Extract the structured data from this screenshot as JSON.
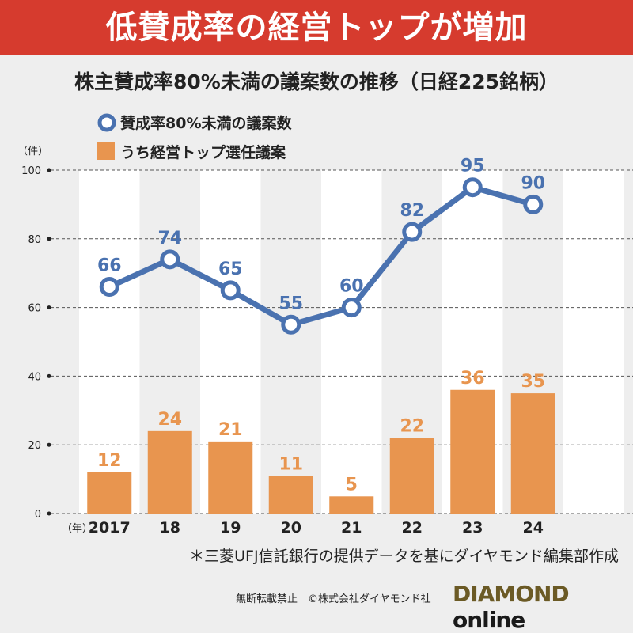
{
  "header": {
    "title": "低賛成率の経営トップが増加"
  },
  "chart_data": {
    "type": "bar+line",
    "title": "株主賛成率80%未満の議案数の推移（日経225銘柄）",
    "ylabel": "（件）",
    "xlabel": "（年）",
    "categories": [
      "2017",
      "18",
      "19",
      "20",
      "21",
      "22",
      "23",
      "24"
    ],
    "ylim": [
      0,
      100
    ],
    "yticks": [
      "0",
      "20",
      "40",
      "60",
      "80",
      "100"
    ],
    "grid": true,
    "legend_placement": "top-left",
    "series": [
      {
        "name": "賛成率80%未満の議案数",
        "type": "line",
        "color": "#4a72b0",
        "values": [
          66,
          74,
          65,
          55,
          60,
          82,
          95,
          90
        ]
      },
      {
        "name": "うち経営トップ選任議案",
        "type": "bar",
        "color": "#e8954f",
        "values": [
          12,
          24,
          21,
          11,
          5,
          22,
          36,
          35
        ]
      }
    ]
  },
  "footer": {
    "note": "＊三菱UFJ信託銀行の提供データを基にダイヤモンド編集部作成",
    "copyright": "無断転載禁止　©株式会社ダイヤモンド社",
    "logo_main": "DIAMOND",
    "logo_sub": "online"
  }
}
